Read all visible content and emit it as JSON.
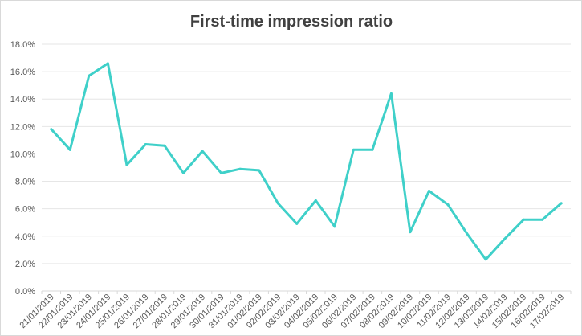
{
  "chart_data": {
    "type": "line",
    "title": "First-time impression ratio",
    "xlabel": "",
    "ylabel": "",
    "categories": [
      "21/01/2019",
      "22/01/2019",
      "23/01/2019",
      "24/01/2019",
      "25/01/2019",
      "26/01/2019",
      "27/01/2019",
      "28/01/2019",
      "29/01/2019",
      "30/01/2019",
      "31/01/2019",
      "01/02/2019",
      "02/02/2019",
      "03/02/2019",
      "04/02/2019",
      "05/02/2019",
      "06/02/2019",
      "07/02/2019",
      "08/02/2019",
      "09/02/2019",
      "10/02/2019",
      "11/02/2019",
      "12/02/2019",
      "13/02/2019",
      "14/02/2019",
      "15/02/2019",
      "16/02/2019",
      "17/02/2019"
    ],
    "series": [
      {
        "color": "#3fd0c9",
        "values": [
          11.8,
          10.3,
          15.7,
          16.6,
          9.2,
          10.7,
          10.6,
          8.6,
          10.2,
          8.6,
          8.9,
          8.8,
          6.4,
          4.9,
          6.6,
          4.7,
          10.3,
          10.3,
          14.4,
          4.3,
          7.3,
          6.3,
          4.2,
          2.3,
          3.8,
          5.2,
          5.2,
          6.4
        ]
      }
    ],
    "ylim": [
      0,
      18
    ],
    "ytick_values": [
      0,
      2,
      4,
      6,
      8,
      10,
      12,
      14,
      16,
      18
    ],
    "ytick_labels": [
      "0.0%",
      "2.0%",
      "4.0%",
      "6.0%",
      "8.0%",
      "10.0%",
      "12.0%",
      "14.0%",
      "16.0%",
      "18.0%"
    ],
    "grid": true,
    "legend": "none"
  }
}
